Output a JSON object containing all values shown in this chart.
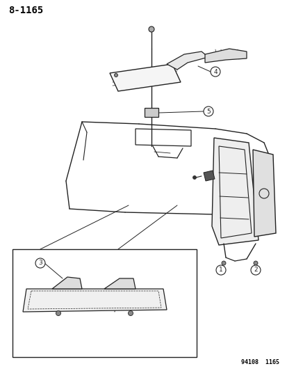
{
  "title": "8-1165",
  "footnote": "94108  1165",
  "bg_color": "#ffffff",
  "text_color": "#000000",
  "line_color": "#222222",
  "figsize": [
    4.14,
    5.33
  ],
  "dpi": 100
}
